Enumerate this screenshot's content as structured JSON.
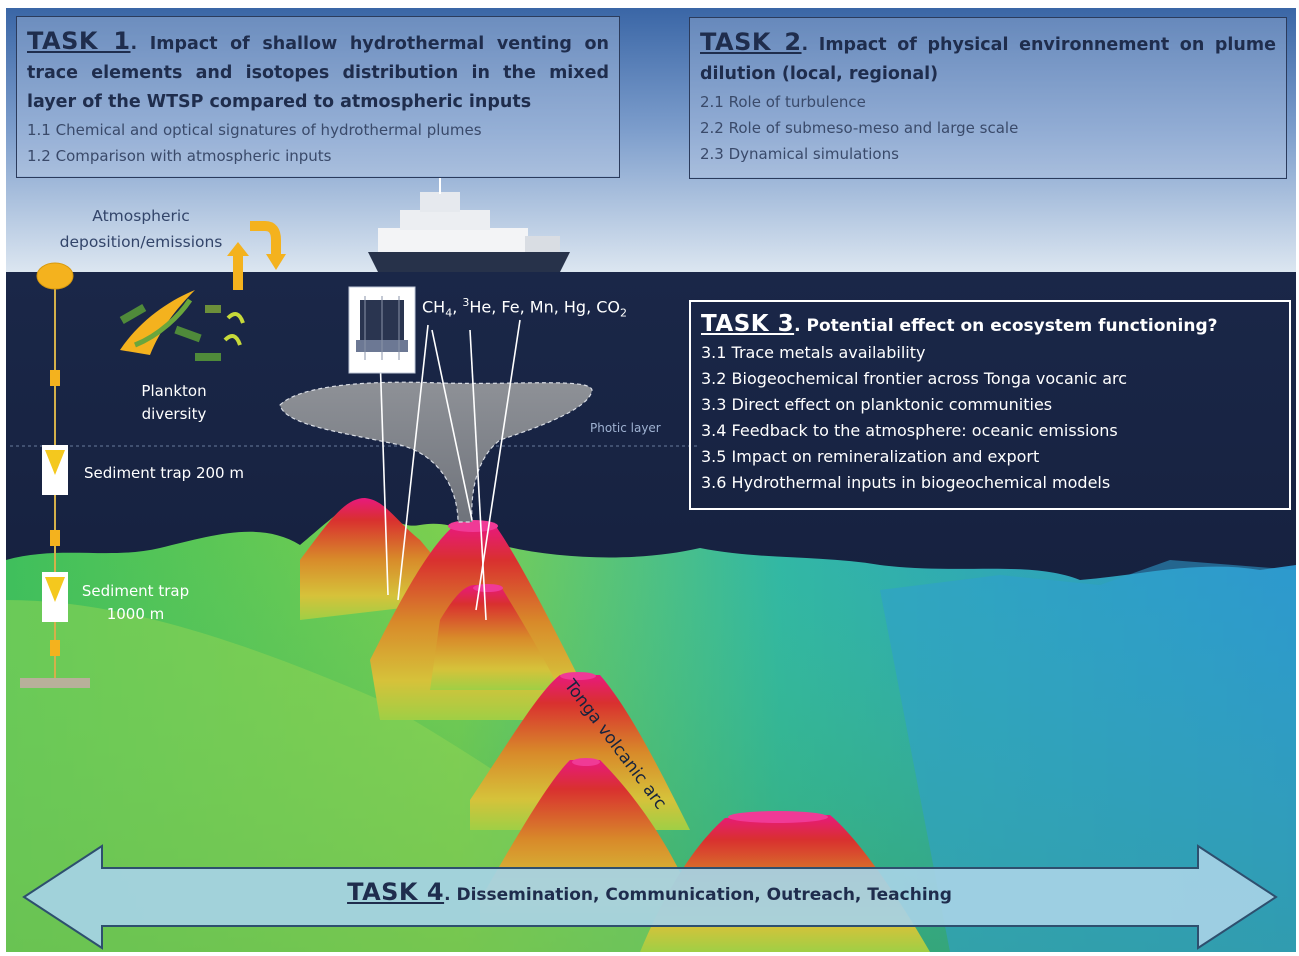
{
  "task1": {
    "number": "TASK 1",
    "title": ". Impact of shallow hydrothermal venting on trace elements and isotopes distribution in the mixed layer of the WTSP compared to atmospheric inputs",
    "items": [
      "1.1 Chemical and optical signatures of hydrothermal plumes",
      "1.2 Comparison with atmospheric inputs"
    ]
  },
  "task2": {
    "number": "TASK 2",
    "title": ". Impact of physical environnement on plume dilution (local, regional)",
    "items": [
      "2.1 Role of turbulence",
      "2.2 Role of submeso-meso and large scale",
      "2.3 Dynamical simulations"
    ]
  },
  "task3": {
    "number": "TASK 3",
    "title": ". Potential effect on ecosystem functioning?",
    "items": [
      "3.1 Trace metals availability",
      "3.2 Biogeochemical frontier across Tonga vocanic arc",
      "3.3 Direct effect on planktonic communities",
      "3.4 Feedback to the atmosphere: oceanic emissions",
      "3.5 Impact on remineralization and export",
      "3.6 Hydrothermal inputs in biogeochemical models"
    ]
  },
  "task4": {
    "number": "TASK 4",
    "title": ". Dissemination, Communication, Outreach, Teaching"
  },
  "labels": {
    "atmospheric_line1": "Atmospheric",
    "atmospheric_line2": "deposition/emissions",
    "plankton_line1": "Plankton",
    "plankton_line2": "diversity",
    "trap200": "Sediment trap 200 m",
    "trap1000_line1": "Sediment trap",
    "trap1000_line2": "1000 m",
    "photic_layer": "Photic layer",
    "tonga_arc": "Tonga volcanic arc",
    "tracers": {
      "ch": "CH",
      "ch_sub": "4",
      "he_sup": "3",
      "he_rest": "He, Fe, Mn, Hg, CO",
      "co_sub": "2"
    }
  },
  "colors": {
    "sky_top": "#3d6aa8",
    "sky_bottom": "#d7e3ef",
    "ocean": "#16213f",
    "arrow_fill": "#a8d3e6",
    "arrow_stroke": "#2e4f6e",
    "accent_yellow": "#f4b21e",
    "volcano_peak": "#e8177d"
  }
}
